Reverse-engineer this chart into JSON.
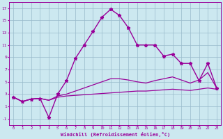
{
  "xlabel": "Windchill (Refroidissement éolien,°C)",
  "xlim": [
    -0.5,
    23.5
  ],
  "ylim": [
    -2,
    18
  ],
  "xticks": [
    0,
    1,
    2,
    3,
    4,
    5,
    6,
    7,
    8,
    9,
    10,
    11,
    12,
    13,
    14,
    15,
    16,
    17,
    18,
    19,
    20,
    21,
    22,
    23
  ],
  "yticks": [
    -1,
    1,
    3,
    5,
    7,
    9,
    11,
    13,
    15,
    17
  ],
  "bg_color": "#cce8f0",
  "grid_color": "#99bbcc",
  "line_color": "#990099",
  "lines": [
    {
      "x": [
        0,
        1,
        2,
        3,
        4,
        5,
        6,
        7,
        8,
        9,
        10,
        11,
        12,
        13,
        14,
        15,
        16,
        17,
        18,
        19,
        20,
        21,
        22,
        23
      ],
      "y": [
        2.5,
        1.8,
        2.2,
        2.3,
        2.0,
        2.5,
        2.7,
        2.8,
        2.9,
        3.0,
        3.1,
        3.2,
        3.3,
        3.4,
        3.5,
        3.5,
        3.6,
        3.7,
        3.8,
        3.7,
        3.6,
        3.8,
        4.0,
        3.8
      ],
      "marker": false,
      "lw": 0.9
    },
    {
      "x": [
        0,
        1,
        2,
        3,
        4,
        5,
        6,
        7,
        8,
        9,
        10,
        11,
        12,
        13,
        14,
        15,
        16,
        17,
        18,
        19,
        20,
        21,
        22,
        23
      ],
      "y": [
        2.5,
        1.8,
        2.2,
        2.3,
        2.0,
        2.7,
        3.0,
        3.5,
        4.0,
        4.5,
        5.0,
        5.5,
        5.5,
        5.3,
        5.0,
        4.8,
        5.2,
        5.5,
        5.8,
        5.3,
        4.8,
        5.3,
        6.5,
        4.0
      ],
      "marker": false,
      "lw": 0.9
    },
    {
      "x": [
        0,
        1,
        2,
        3,
        4,
        5,
        6,
        7,
        8,
        9,
        10,
        11,
        12,
        13,
        14,
        15,
        16,
        17,
        18,
        19,
        20,
        21,
        22,
        23
      ],
      "y": [
        2.5,
        1.8,
        2.2,
        2.3,
        -0.8,
        3.0,
        5.2,
        8.8,
        11.0,
        13.2,
        15.5,
        16.8,
        15.8,
        13.8,
        11.0,
        11.0,
        11.0,
        9.2,
        9.5,
        8.0,
        8.0,
        5.2,
        8.0,
        4.0
      ],
      "marker": true,
      "lw": 1.0
    }
  ]
}
